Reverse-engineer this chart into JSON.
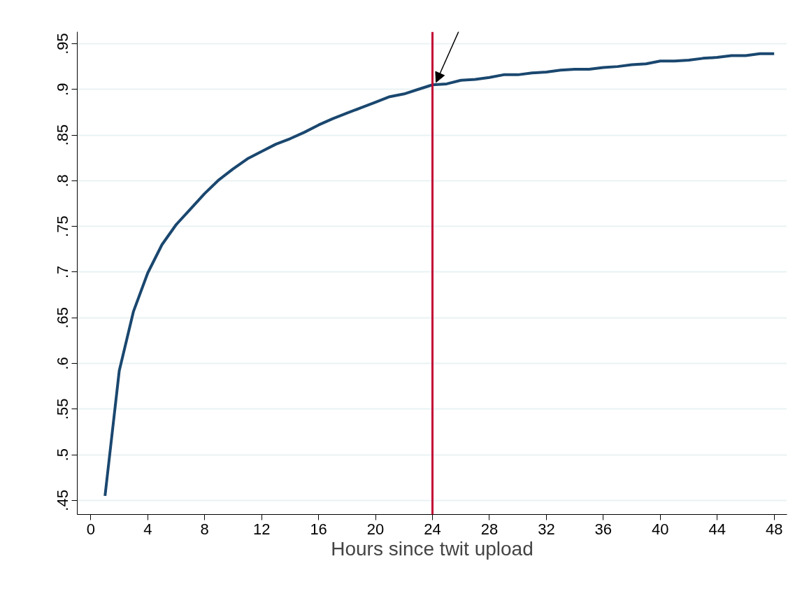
{
  "chart_data": {
    "type": "line",
    "xlabel": "Hours since twit upload",
    "x": [
      1,
      2,
      3,
      4,
      5,
      6,
      7,
      8,
      9,
      10,
      11,
      12,
      13,
      14,
      15,
      16,
      17,
      18,
      19,
      20,
      21,
      22,
      23,
      24,
      25,
      26,
      27,
      28,
      29,
      30,
      31,
      32,
      33,
      34,
      35,
      36,
      37,
      38,
      39,
      40,
      41,
      42,
      43,
      44,
      45,
      46,
      47,
      48
    ],
    "series": [
      {
        "color": "#1a476f",
        "values": [
          0.455,
          0.592,
          0.657,
          0.699,
          0.73,
          0.752,
          0.769,
          0.786,
          0.801,
          0.813,
          0.824,
          0.832,
          0.84,
          0.846,
          0.853,
          0.861,
          0.868,
          0.874,
          0.88,
          0.886,
          0.892,
          0.895,
          0.9,
          0.905,
          0.906,
          0.91,
          0.911,
          0.913,
          0.916,
          0.916,
          0.918,
          0.919,
          0.921,
          0.922,
          0.922,
          0.924,
          0.925,
          0.927,
          0.928,
          0.931,
          0.931,
          0.932,
          0.934,
          0.935,
          0.937,
          0.937,
          0.939,
          0.939
        ]
      }
    ],
    "xlim": [
      -0.95,
      48.9
    ],
    "xticks": [
      0,
      4,
      8,
      12,
      16,
      20,
      24,
      28,
      32,
      36,
      40,
      44,
      48
    ],
    "ylim": [
      0.4346,
      0.963
    ],
    "yticks": [
      {
        "value": 0.45,
        "label": ".45"
      },
      {
        "value": 0.5,
        "label": ".5"
      },
      {
        "value": 0.55,
        "label": ".55"
      },
      {
        "value": 0.6,
        "label": ".6"
      },
      {
        "value": 0.65,
        "label": ".65"
      },
      {
        "value": 0.7,
        "label": ".7"
      },
      {
        "value": 0.75,
        "label": ".75"
      },
      {
        "value": 0.8,
        "label": ".8"
      },
      {
        "value": 0.85,
        "label": ".85"
      },
      {
        "value": 0.9,
        "label": ".9"
      },
      {
        "value": 0.95,
        "label": ".95"
      }
    ],
    "grid": "y",
    "marker": "none",
    "line_style": "solid",
    "ref_lines": [
      {
        "axis": "x",
        "value": 24,
        "label": null,
        "color": "#c10534"
      }
    ]
  }
}
